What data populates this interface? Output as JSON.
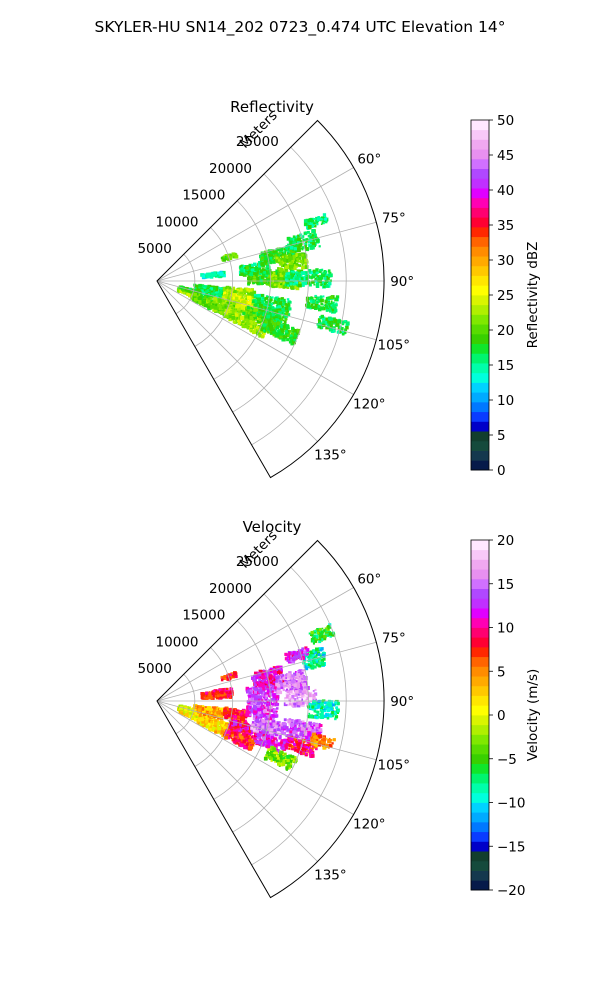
{
  "figure": {
    "suptitle": "SKYLER-HU  SN14_202  0723_0.474 UTC Elevation 14°"
  },
  "chart_data": [
    {
      "type": "polar-sector",
      "title": "Reflectivity",
      "range_label": "Meters",
      "r_ticks": [
        5000,
        10000,
        15000,
        20000,
        25000
      ],
      "r_tick_labels": [
        "5000",
        "10000",
        "15000",
        "20000",
        "25000"
      ],
      "r_max": 30000,
      "theta_range_deg": [
        45,
        150
      ],
      "theta_ticks": [
        60,
        75,
        90,
        105,
        120,
        135
      ],
      "theta_tick_labels": [
        "60°",
        "75°",
        "90°",
        "105°",
        "120°",
        "135°"
      ],
      "grid": true,
      "colorbar": {
        "label": "Reflectivity dBZ",
        "vmin": 0,
        "vmax": 50,
        "ticks": [
          0,
          5,
          10,
          15,
          20,
          25,
          30,
          35,
          40,
          45,
          50
        ],
        "tick_labels": [
          "0",
          "5",
          "10",
          "15",
          "20",
          "25",
          "30",
          "35",
          "40",
          "45",
          "50"
        ],
        "colors": [
          "#061a4a",
          "#14384e",
          "#154a3c",
          "#123e2e",
          "#0000c8",
          "#0a3cff",
          "#0078ff",
          "#00aaff",
          "#00d2ff",
          "#00ffdc",
          "#00ffaa",
          "#00f56e",
          "#10e62a",
          "#38d000",
          "#58dc00",
          "#80e800",
          "#b0ef00",
          "#daf500",
          "#ffff00",
          "#ffe600",
          "#ffc800",
          "#ffaa00",
          "#ff8c00",
          "#ff6400",
          "#ff2800",
          "#ff0032",
          "#ff0070",
          "#ff00b4",
          "#e000ff",
          "#c030ff",
          "#b048ff",
          "#d070ff",
          "#e890f0",
          "#f0a8f0",
          "#f8c8f8",
          "#ffe8ff"
        ]
      },
      "data_fields": [
        {
          "range_m": [
            3000,
            5000
          ],
          "az_deg": [
            110,
            114
          ],
          "value": 22
        },
        {
          "range_m": [
            3000,
            5000
          ],
          "az_deg": [
            104,
            108
          ],
          "value": 18
        },
        {
          "range_m": [
            5000,
            9000
          ],
          "az_deg": [
            96,
            106
          ],
          "value": 17
        },
        {
          "range_m": [
            5000,
            8000
          ],
          "az_deg": [
            108,
            118
          ],
          "value": 20
        },
        {
          "range_m": [
            8000,
            12000
          ],
          "az_deg": [
            106,
            117
          ],
          "value": 21
        },
        {
          "range_m": [
            9000,
            13000
          ],
          "az_deg": [
            95,
            100
          ],
          "value": 22
        },
        {
          "range_m": [
            9000,
            13000
          ],
          "az_deg": [
            100,
            106
          ],
          "value": 24
        },
        {
          "range_m": [
            11000,
            14000
          ],
          "az_deg": [
            103,
            108
          ],
          "value": 25
        },
        {
          "range_m": [
            10000,
            16000
          ],
          "az_deg": [
            112,
            118
          ],
          "value": 22
        },
        {
          "range_m": [
            12000,
            17000
          ],
          "az_deg": [
            106,
            112
          ],
          "value": 20
        },
        {
          "range_m": [
            13000,
            18000
          ],
          "az_deg": [
            98,
            104
          ],
          "value": 17
        },
        {
          "range_m": [
            14000,
            18000
          ],
          "az_deg": [
            104,
            110
          ],
          "value": 18
        },
        {
          "range_m": [
            15000,
            20000
          ],
          "az_deg": [
            109,
            115
          ],
          "value": 18
        },
        {
          "range_m": [
            12000,
            17000
          ],
          "az_deg": [
            85,
            92
          ],
          "value": 19
        },
        {
          "range_m": [
            15000,
            19000
          ],
          "az_deg": [
            86,
            93
          ],
          "value": 21
        },
        {
          "range_m": [
            11000,
            15000
          ],
          "az_deg": [
            80,
            86
          ],
          "value": 17
        },
        {
          "range_m": [
            14000,
            19000
          ],
          "az_deg": [
            75,
            81
          ],
          "value": 18
        },
        {
          "range_m": [
            16000,
            20000
          ],
          "az_deg": [
            79,
            85
          ],
          "value": 21
        },
        {
          "range_m": [
            18000,
            22000
          ],
          "az_deg": [
            72,
            78
          ],
          "value": 17
        },
        {
          "range_m": [
            17000,
            23000
          ],
          "az_deg": [
            86,
            92
          ],
          "value": 16
        },
        {
          "range_m": [
            20000,
            24000
          ],
          "az_deg": [
            95,
            100
          ],
          "value": 17
        },
        {
          "range_m": [
            9000,
            11000
          ],
          "az_deg": [
            70,
            73
          ],
          "value": 20
        },
        {
          "range_m": [
            6000,
            9000
          ],
          "az_deg": [
            82,
            86
          ],
          "value": 14
        },
        {
          "range_m": [
            21000,
            24000
          ],
          "az_deg": [
            68,
            71
          ],
          "value": 16
        },
        {
          "range_m": [
            22000,
            26000
          ],
          "az_deg": [
            102,
            106
          ],
          "value": 17
        }
      ]
    },
    {
      "type": "polar-sector",
      "title": "Velocity",
      "range_label": "Meters",
      "r_ticks": [
        5000,
        10000,
        15000,
        20000,
        25000
      ],
      "r_tick_labels": [
        "5000",
        "10000",
        "15000",
        "20000",
        "25000"
      ],
      "r_max": 30000,
      "theta_range_deg": [
        45,
        150
      ],
      "theta_ticks": [
        60,
        75,
        90,
        105,
        120,
        135
      ],
      "theta_tick_labels": [
        "60°",
        "75°",
        "90°",
        "105°",
        "120°",
        "135°"
      ],
      "grid": true,
      "colorbar": {
        "label": "Velocity (m/s)",
        "vmin": -20,
        "vmax": 20,
        "ticks": [
          -20,
          -15,
          -10,
          -5,
          0,
          5,
          10,
          15,
          20
        ],
        "tick_labels": [
          "−20",
          "−15",
          "−10",
          "−5",
          "0",
          "5",
          "10",
          "15",
          "20"
        ],
        "colors": [
          "#061a4a",
          "#14384e",
          "#154a3c",
          "#123e2e",
          "#0000c8",
          "#0a3cff",
          "#0078ff",
          "#00aaff",
          "#00d2ff",
          "#00ffdc",
          "#00ffaa",
          "#00f56e",
          "#10e62a",
          "#38d000",
          "#58dc00",
          "#80e800",
          "#b0ef00",
          "#daf500",
          "#ffff00",
          "#ffe600",
          "#ffc800",
          "#ffaa00",
          "#ff8c00",
          "#ff6400",
          "#ff2800",
          "#ff0032",
          "#ff0070",
          "#ff00b4",
          "#e000ff",
          "#c030ff",
          "#b048ff",
          "#d070ff",
          "#e890f0",
          "#f0a8f0",
          "#f8c8f8",
          "#ffe8ff"
        ]
      },
      "data_fields": [
        {
          "range_m": [
            3000,
            6000
          ],
          "az_deg": [
            108,
            116
          ],
          "value": 1
        },
        {
          "range_m": [
            3000,
            5000
          ],
          "az_deg": [
            102,
            107
          ],
          "value": 0
        },
        {
          "range_m": [
            6000,
            10000
          ],
          "az_deg": [
            108,
            118
          ],
          "value": 2
        },
        {
          "range_m": [
            5000,
            9000
          ],
          "az_deg": [
            97,
            106
          ],
          "value": 4
        },
        {
          "range_m": [
            9000,
            12000
          ],
          "az_deg": [
            96,
            104
          ],
          "value": 8
        },
        {
          "range_m": [
            10000,
            14000
          ],
          "az_deg": [
            104,
            111
          ],
          "value": 10
        },
        {
          "range_m": [
            10000,
            14000
          ],
          "az_deg": [
            111,
            118
          ],
          "value": 8
        },
        {
          "range_m": [
            13000,
            17000
          ],
          "az_deg": [
            100,
            107
          ],
          "value": 15
        },
        {
          "range_m": [
            14000,
            18000
          ],
          "az_deg": [
            107,
            113
          ],
          "value": 12
        },
        {
          "range_m": [
            12000,
            16000
          ],
          "az_deg": [
            93,
            99
          ],
          "value": 13
        },
        {
          "range_m": [
            17000,
            22000
          ],
          "az_deg": [
            98,
            105
          ],
          "value": 14
        },
        {
          "range_m": [
            18000,
            22000
          ],
          "az_deg": [
            105,
            110
          ],
          "value": 9
        },
        {
          "range_m": [
            16000,
            20000
          ],
          "az_deg": [
            112,
            118
          ],
          "value": -3
        },
        {
          "range_m": [
            12000,
            16000
          ],
          "az_deg": [
            82,
            92
          ],
          "value": 13
        },
        {
          "range_m": [
            13000,
            17000
          ],
          "az_deg": [
            74,
            82
          ],
          "value": 11
        },
        {
          "range_m": [
            16000,
            20000
          ],
          "az_deg": [
            78,
            86
          ],
          "value": 15
        },
        {
          "range_m": [
            17000,
            21000
          ],
          "az_deg": [
            86,
            92
          ],
          "value": 17
        },
        {
          "range_m": [
            20000,
            24000
          ],
          "az_deg": [
            90,
            96
          ],
          "value": -9
        },
        {
          "range_m": [
            20000,
            23000
          ],
          "az_deg": [
            72,
            78
          ],
          "value": -9
        },
        {
          "range_m": [
            18000,
            21000
          ],
          "az_deg": [
            70,
            74
          ],
          "value": 12
        },
        {
          "range_m": [
            6000,
            10000
          ],
          "az_deg": [
            80,
            87
          ],
          "value": 8
        },
        {
          "range_m": [
            9000,
            11000
          ],
          "az_deg": [
            70,
            73
          ],
          "value": 8
        },
        {
          "range_m": [
            21000,
            24000
          ],
          "az_deg": [
            102,
            106
          ],
          "value": 5
        },
        {
          "range_m": [
            22000,
            25000
          ],
          "az_deg": [
            66,
            70
          ],
          "value": -6
        }
      ]
    }
  ]
}
